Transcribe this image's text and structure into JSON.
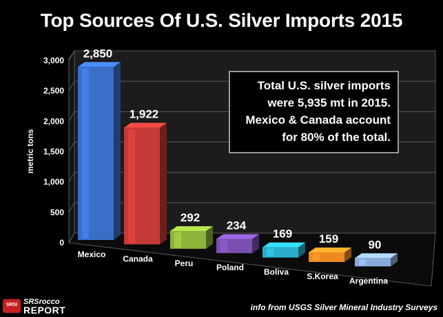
{
  "chart_data": {
    "type": "bar",
    "title": "Top Sources Of U.S. Silver Imports 2015",
    "xlabel": "",
    "ylabel": "metric tons",
    "categories": [
      "Mexico",
      "Canada",
      "Peru",
      "Poland",
      "Boliva",
      "S.Korea",
      "Argentina"
    ],
    "values": [
      2850,
      1922,
      292,
      234,
      169,
      159,
      90
    ],
    "data_labels": [
      "2,850",
      "1,922",
      "292",
      "234",
      "169",
      "159",
      "90"
    ],
    "bar_colors": [
      "#3a6fc9",
      "#c43a36",
      "#8db33a",
      "#7a4fb0",
      "#2aaecb",
      "#ee8a22",
      "#8aaadd"
    ],
    "yticks": [
      "0",
      "500",
      "1,000",
      "1,500",
      "2,000",
      "2,500",
      "3,000"
    ],
    "ylim": [
      0,
      3000
    ],
    "grid": true,
    "style": "3d"
  },
  "annotation": {
    "lines": [
      "Total U.S. silver imports",
      "were 5,935 mt in 2015.",
      "Mexico & Canada account",
      "for 80% of the total."
    ]
  },
  "logo": {
    "badge": "SRSI",
    "line1": "SRSrocco",
    "line2": "REPORT"
  },
  "source": "info from USGS Silver Mineral Industry Surveys"
}
